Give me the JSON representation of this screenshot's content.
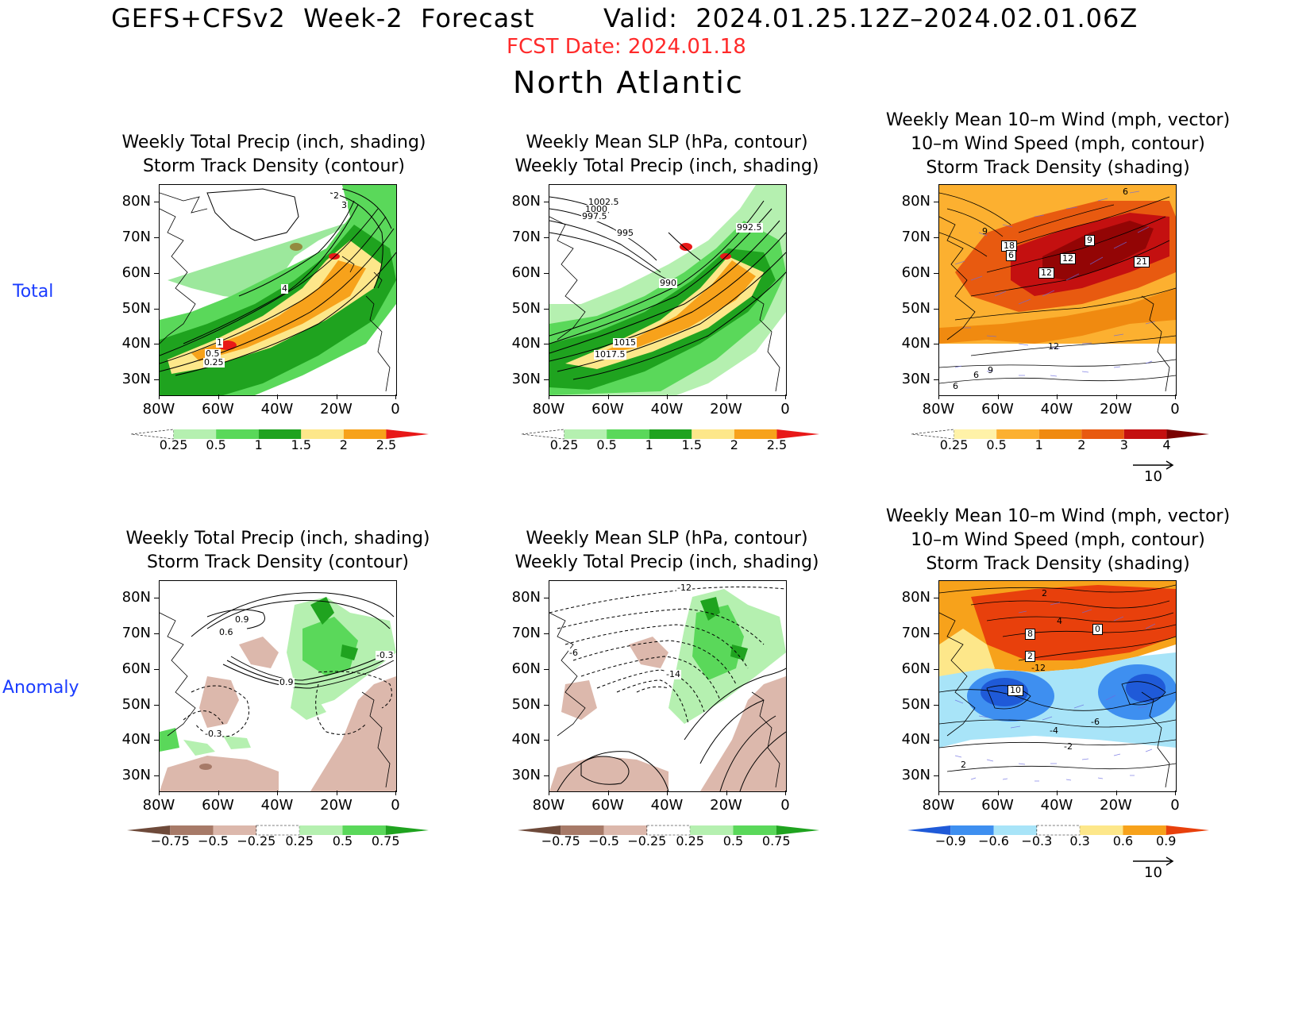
{
  "header": {
    "product": "GEFS+CFSv2  Week-2  Forecast",
    "valid": "Valid:  2024.01.25.12Z–2024.02.01.06Z",
    "fcst_date": "FCST  Date:  2024.01.18",
    "region": "North  Atlantic"
  },
  "rows": {
    "total": "Total",
    "anomaly": "Anomaly"
  },
  "titles": {
    "precip": "Weekly Total Precip (inch, shading)\nStorm Track Density (contour)",
    "slp": "Weekly Mean SLP (hPa, contour)\nWeekly Total Precip (inch, shading)",
    "wind": "Weekly Mean 10–m Wind (mph, vector)\n10–m Wind Speed (mph, contour)\nStorm Track Density (shading)"
  },
  "axes": {
    "lat_ticks": [
      "80N",
      "70N",
      "60N",
      "50N",
      "40N",
      "30N"
    ],
    "lon_ticks": [
      "80W",
      "60W",
      "40W",
      "20W",
      "0"
    ]
  },
  "colorbars": {
    "precip_total": {
      "labels": [
        "0.25",
        "0.5",
        "1",
        "1.5",
        "2",
        "2.5"
      ],
      "colors": [
        "#ffffff",
        "#b5f0b0",
        "#5ad85a",
        "#1fa31f",
        "#fde78a",
        "#f7a21b",
        "#e81818"
      ]
    },
    "wind_total": {
      "labels": [
        "0.25",
        "0.5",
        "1",
        "2",
        "3",
        "4"
      ],
      "colors": [
        "#ffffff",
        "#fff2a8",
        "#fcb030",
        "#f08a10",
        "#e85a10",
        "#c41010",
        "#7a0000"
      ]
    },
    "precip_anom": {
      "labels": [
        "−0.75",
        "−0.5",
        "−0.25",
        "0.25",
        "0.5",
        "0.75"
      ],
      "colors": [
        "#6e4a3a",
        "#a77a68",
        "#dcb8ac",
        "#ffffff",
        "#b5f0b0",
        "#5ad85a",
        "#1fa31f"
      ]
    },
    "wind_anom": {
      "labels": [
        "−0.9",
        "−0.6",
        "−0.3",
        "0.3",
        "0.6",
        "0.9"
      ],
      "colors": [
        "#1f5ad8",
        "#3e8ff0",
        "#a8e4f8",
        "#ffffff",
        "#fde78a",
        "#f7a21b",
        "#e8400c"
      ]
    }
  },
  "vector_ref": "10",
  "contour_labels": {
    "p1": [
      "2",
      "3",
      "4",
      "1",
      "0.5",
      "0.25"
    ],
    "p2": [
      "1002.5",
      "1000",
      "997.5",
      "995",
      "992.5",
      "990",
      "1015",
      "1017.5"
    ],
    "p3": [
      "6",
      "9",
      "18",
      "6",
      "9",
      "12",
      "12",
      "21",
      "12",
      "9",
      "6",
      "6"
    ],
    "p4": [
      "0.9",
      "0.6",
      "0.9",
      "-0.3",
      "-0.3"
    ],
    "p5": [
      "-12",
      "-6",
      "-14"
    ],
    "p6": [
      "2",
      "4",
      "8",
      "0",
      "2",
      "-12",
      "10",
      "-6",
      "-4",
      "-2",
      "2"
    ]
  }
}
